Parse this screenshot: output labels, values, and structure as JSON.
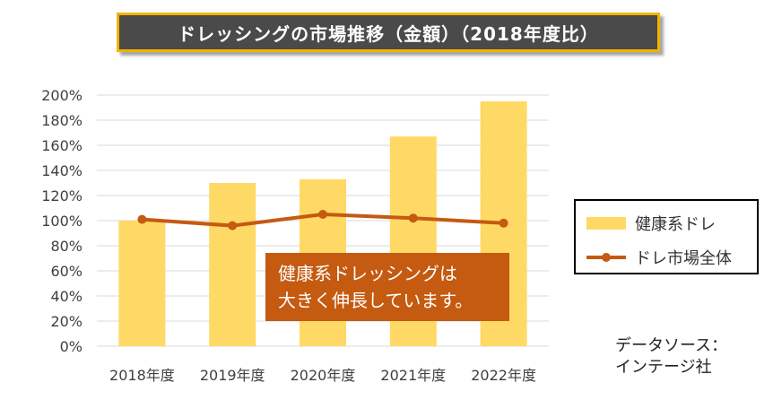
{
  "title": "ドレッシングの市場推移（金額）（2018年度比）",
  "colors": {
    "bar": "#ffd966",
    "line": "#c55a11",
    "title_bg": "#4a4a4a",
    "title_border": "#f0b400",
    "callout_bg": "#c55a11"
  },
  "callout": {
    "line1": "健康系ドレッシングは",
    "line2": "大きく伸長しています。"
  },
  "source": {
    "line1": "データソース：",
    "line2": "インテージ社"
  },
  "chart_data": {
    "type": "bar",
    "categories": [
      "2018年度",
      "2019年度",
      "2020年度",
      "2021年度",
      "2022年度"
    ],
    "series": [
      {
        "name": "健康系ドレ",
        "type": "bar",
        "values": [
          100,
          130,
          133,
          167,
          195
        ]
      },
      {
        "name": "ドレ市場全体",
        "type": "line",
        "values": [
          101,
          96,
          105,
          102,
          98
        ]
      }
    ],
    "y_ticks": [
      "0%",
      "20%",
      "40%",
      "60%",
      "80%",
      "100%",
      "120%",
      "140%",
      "160%",
      "180%",
      "200%"
    ],
    "ylim": [
      0,
      200
    ],
    "unit": "%",
    "grid": true,
    "legend": "right"
  }
}
